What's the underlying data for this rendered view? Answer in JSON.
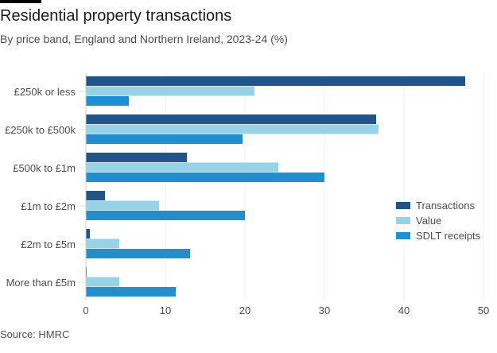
{
  "chart_data": {
    "type": "bar",
    "orientation": "horizontal",
    "title": "Residential property transactions",
    "subtitle": "By price band, England and Northern Ireland, 2023-24 (%)",
    "source": "Source: HMRC",
    "categories": [
      "£250k or less",
      "£250k to £500k",
      "£500k to £1m",
      "£1m to £2m",
      "£2m to £5m",
      "More than £5m"
    ],
    "series": [
      {
        "name": "Transactions",
        "color": "#1f558b",
        "values": [
          47.7,
          36.5,
          12.7,
          2.4,
          0.5,
          0.1
        ]
      },
      {
        "name": "Value",
        "color": "#96d3e6",
        "values": [
          21.2,
          36.8,
          24.2,
          9.2,
          4.2,
          4.2
        ]
      },
      {
        "name": "SDLT receipts",
        "color": "#1f8fcf",
        "values": [
          5.4,
          19.7,
          30.0,
          20.0,
          13.1,
          11.3
        ]
      }
    ],
    "xlim": [
      0,
      50
    ],
    "xticks": [
      "0",
      "10",
      "20",
      "30",
      "40",
      "50"
    ],
    "grid": true,
    "legend": "right"
  }
}
